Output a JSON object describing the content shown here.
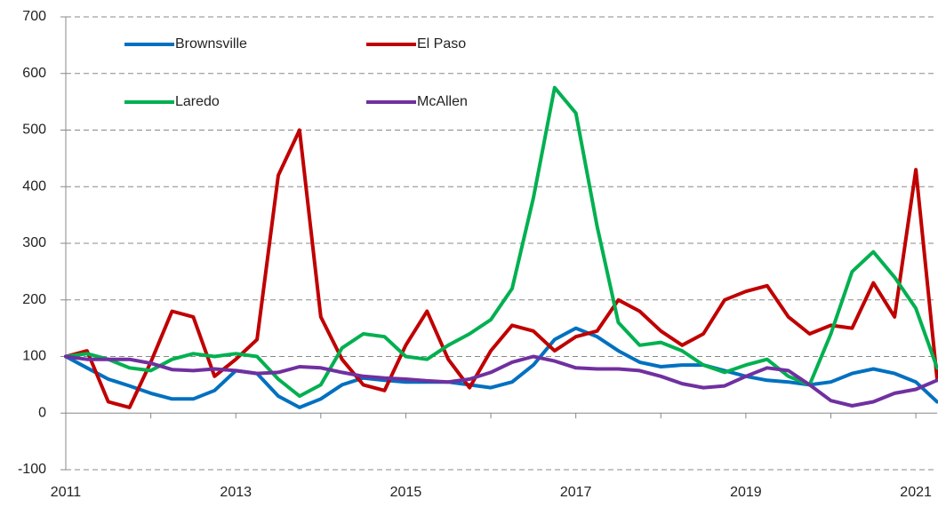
{
  "chart_data": {
    "type": "line",
    "x": [
      2011,
      2011.25,
      2011.5,
      2011.75,
      2012,
      2012.25,
      2012.5,
      2012.75,
      2013,
      2013.25,
      2013.5,
      2013.75,
      2014,
      2014.25,
      2014.5,
      2014.75,
      2015,
      2015.25,
      2015.5,
      2015.75,
      2016,
      2016.25,
      2016.5,
      2016.75,
      2017,
      2017.25,
      2017.5,
      2017.75,
      2018,
      2018.25,
      2018.5,
      2018.75,
      2019,
      2019.25,
      2019.5,
      2019.75,
      2020,
      2020.25,
      2020.5,
      2020.75,
      2021,
      2021.25
    ],
    "series": [
      {
        "name": "Brownsville",
        "color": "#0070c0",
        "values": [
          100,
          80,
          60,
          48,
          35,
          25,
          25,
          40,
          75,
          70,
          30,
          10,
          25,
          50,
          62,
          58,
          55,
          55,
          55,
          50,
          45,
          55,
          85,
          130,
          150,
          135,
          110,
          90,
          82,
          85,
          85,
          75,
          65,
          58,
          55,
          50,
          55,
          70,
          78,
          70,
          55,
          20
        ]
      },
      {
        "name": "El Paso",
        "color": "#c00000",
        "values": [
          100,
          110,
          20,
          10,
          90,
          180,
          170,
          65,
          95,
          130,
          420,
          500,
          170,
          95,
          50,
          40,
          120,
          180,
          95,
          45,
          110,
          155,
          145,
          110,
          135,
          145,
          200,
          180,
          145,
          120,
          140,
          200,
          215,
          225,
          170,
          140,
          155,
          150,
          230,
          170,
          430,
          60
        ]
      },
      {
        "name": "Laredo",
        "color": "#00b050",
        "values": [
          100,
          105,
          95,
          80,
          75,
          95,
          105,
          100,
          105,
          100,
          60,
          30,
          50,
          115,
          140,
          135,
          100,
          95,
          120,
          140,
          165,
          220,
          380,
          575,
          530,
          330,
          160,
          120,
          125,
          110,
          85,
          72,
          85,
          95,
          65,
          50,
          140,
          250,
          285,
          240,
          185,
          80
        ]
      },
      {
        "name": "McAllen",
        "color": "#7030a0",
        "values": [
          100,
          95,
          95,
          95,
          88,
          77,
          75,
          78,
          75,
          70,
          72,
          82,
          80,
          72,
          65,
          62,
          60,
          57,
          55,
          60,
          72,
          90,
          100,
          92,
          80,
          78,
          78,
          75,
          65,
          52,
          45,
          48,
          65,
          80,
          75,
          50,
          22,
          13,
          20,
          35,
          42,
          58
        ]
      }
    ],
    "xlim": [
      2011,
      2021.25
    ],
    "xticks": [
      2011,
      2013,
      2015,
      2017,
      2019,
      2021
    ],
    "xminorticks": [
      2012,
      2014,
      2016,
      2018,
      2020
    ],
    "ylim": [
      -100,
      700
    ],
    "yticks": [
      -100,
      0,
      100,
      200,
      300,
      400,
      500,
      600,
      700
    ],
    "grid": true
  }
}
